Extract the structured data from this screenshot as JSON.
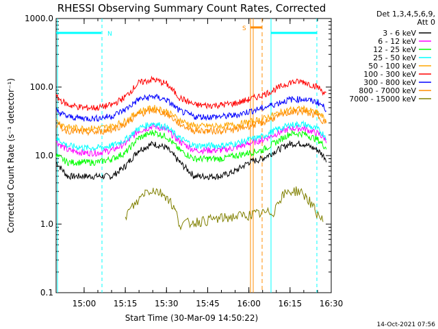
{
  "chart_data": {
    "type": "line",
    "title": "RHESSI Observing Summary Count Rates, Corrected",
    "xlabel": "Start Time (30-Mar-09 14:50:22)",
    "ylabel": "Corrected Count Rate (s⁻¹ detector⁻¹)",
    "y_scale": "log",
    "ylim": [
      0.1,
      1000
    ],
    "xlim_minutes": [
      14.83,
      16.5
    ],
    "x_ticks": [
      "15:00",
      "15:15",
      "15:30",
      "15:45",
      "16:00",
      "16:15",
      "16:30"
    ],
    "y_ticks": [
      "0.1",
      "1.0",
      "10.0",
      "100.0",
      "1000.0"
    ],
    "legend_title": [
      "Det 1,3,4,5,6,9,",
      "Att 0"
    ],
    "series": [
      {
        "name": "3 - 6 keV",
        "color": "#000000",
        "x": [
          14.83,
          14.9,
          15.0,
          15.08,
          15.17,
          15.25,
          15.33,
          15.42,
          15.5,
          15.58,
          15.67,
          15.75,
          15.83,
          15.92,
          16.0,
          16.08,
          16.17,
          16.25,
          16.33,
          16.42,
          16.47
        ],
        "y": [
          8,
          5,
          5,
          5,
          5,
          7,
          12,
          15,
          13,
          8,
          5,
          5,
          5,
          6,
          8,
          9,
          12,
          15,
          15,
          12,
          9
        ]
      },
      {
        "name": "6 - 12 keV",
        "color": "#ff00ff",
        "x": [
          14.83,
          14.9,
          15.0,
          15.08,
          15.17,
          15.25,
          15.33,
          15.42,
          15.5,
          15.58,
          15.67,
          15.75,
          15.83,
          15.92,
          16.0,
          16.08,
          16.17,
          16.25,
          16.33,
          16.42,
          16.47
        ],
        "y": [
          16,
          12,
          11,
          11,
          12,
          15,
          23,
          27,
          24,
          16,
          12,
          12,
          12,
          13,
          15,
          17,
          21,
          25,
          25,
          21,
          17
        ]
      },
      {
        "name": "12 - 25 keV",
        "color": "#00ff00",
        "x": [
          14.83,
          14.9,
          15.0,
          15.08,
          15.17,
          15.25,
          15.33,
          15.42,
          15.5,
          15.58,
          15.67,
          15.75,
          15.83,
          15.92,
          16.0,
          16.08,
          16.17,
          16.25,
          16.33,
          16.42,
          16.47
        ],
        "y": [
          10,
          8,
          8,
          8,
          9,
          11,
          18,
          22,
          19,
          12,
          9,
          9,
          9,
          10,
          11,
          12,
          16,
          21,
          21,
          17,
          13
        ]
      },
      {
        "name": "25 - 50 keV",
        "color": "#00ffff",
        "x": [
          14.83,
          14.9,
          15.0,
          15.08,
          15.17,
          15.25,
          15.33,
          15.42,
          15.5,
          15.58,
          15.67,
          15.75,
          15.83,
          15.92,
          16.0,
          16.08,
          16.17,
          16.25,
          16.33,
          16.42,
          16.47
        ],
        "y": [
          18,
          14,
          13,
          13,
          14,
          17,
          25,
          30,
          26,
          18,
          14,
          14,
          14,
          15,
          17,
          19,
          24,
          28,
          29,
          24,
          19
        ]
      },
      {
        "name": "50 - 100 keV",
        "color": "#ffa500",
        "x": [
          14.83,
          14.9,
          15.0,
          15.08,
          15.17,
          15.25,
          15.33,
          15.42,
          15.5,
          15.58,
          15.67,
          15.75,
          15.83,
          15.92,
          16.0,
          16.08,
          16.17,
          16.25,
          16.33,
          16.42,
          16.47
        ],
        "y": [
          32,
          26,
          25,
          25,
          27,
          32,
          44,
          50,
          45,
          33,
          27,
          27,
          27,
          28,
          31,
          34,
          41,
          47,
          48,
          42,
          33
        ]
      },
      {
        "name": "100 - 300 keV",
        "color": "#ff0000",
        "x": [
          14.83,
          14.9,
          15.0,
          15.08,
          15.17,
          15.25,
          15.33,
          15.42,
          15.5,
          15.58,
          15.67,
          15.75,
          15.83,
          15.92,
          16.0,
          16.08,
          16.17,
          16.25,
          16.33,
          16.42,
          16.47
        ],
        "y": [
          72,
          55,
          50,
          50,
          55,
          72,
          115,
          130,
          112,
          70,
          55,
          54,
          55,
          58,
          66,
          76,
          95,
          118,
          120,
          100,
          78
        ]
      },
      {
        "name": "300 - 800 keV",
        "color": "#0000ff",
        "x": [
          14.83,
          14.9,
          15.0,
          15.08,
          15.17,
          15.25,
          15.33,
          15.42,
          15.5,
          15.58,
          15.67,
          15.75,
          15.83,
          15.92,
          16.0,
          16.08,
          16.17,
          16.25,
          16.33,
          16.42,
          16.47
        ],
        "y": [
          45,
          37,
          35,
          35,
          38,
          47,
          66,
          73,
          65,
          45,
          37,
          37,
          37,
          39,
          44,
          49,
          58,
          66,
          67,
          60,
          48
        ]
      },
      {
        "name": "800 - 7000 keV",
        "color": "#ff8c00",
        "x": [
          14.83,
          14.9,
          15.0,
          15.08,
          15.17,
          15.25,
          15.33,
          15.42,
          15.5,
          15.58,
          15.67,
          15.75,
          15.83,
          15.92,
          16.0,
          16.08,
          16.17,
          16.25,
          16.33,
          16.42,
          16.47
        ],
        "y": [
          28,
          23,
          22,
          22,
          24,
          29,
          40,
          46,
          41,
          29,
          23,
          23,
          23,
          24,
          27,
          30,
          37,
          43,
          44,
          38,
          29
        ]
      },
      {
        "name": "7000 - 15000 keV",
        "color": "#808000",
        "x": [
          15.25,
          15.33,
          15.37,
          15.42,
          15.5,
          15.55,
          15.58,
          16.15,
          16.2,
          16.25,
          16.3,
          16.35,
          16.4,
          16.45
        ],
        "y": [
          1.3,
          2.2,
          3.0,
          3.2,
          2.6,
          1.6,
          1.0,
          1.5,
          2.6,
          3.0,
          3.1,
          2.5,
          1.6,
          1.1
        ]
      }
    ],
    "annotations": {
      "n_label": "N",
      "s_label": "S"
    }
  },
  "timestamp": "14-Oct-2021 07:56"
}
